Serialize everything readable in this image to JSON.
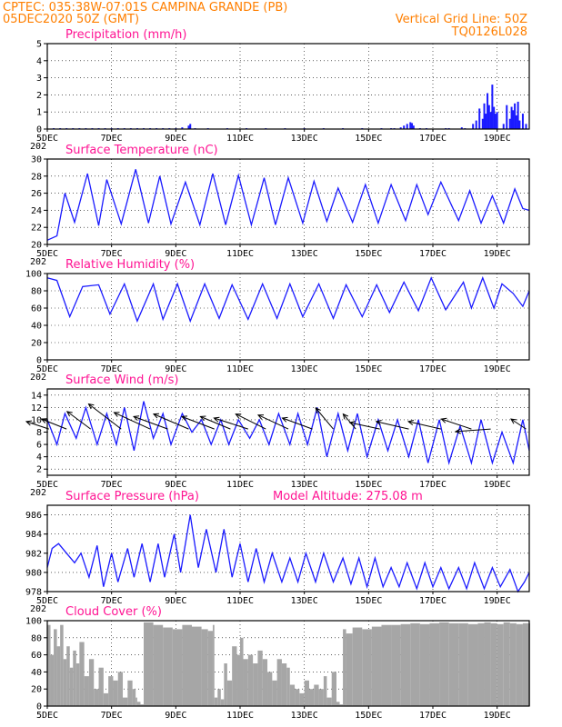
{
  "header": {
    "line1": "CPTEC:   035:38W-07:01S  CAMPINA GRANDE (PB)",
    "line2_left": "05DEC2020 50Z (GMT)",
    "line2_right": "Vertical Grid Line: 50Z",
    "line3_right": "TQ0126L028"
  },
  "colors": {
    "header": "#ff7f00",
    "title": "#ff1493",
    "series": "#1a1aff",
    "wind_arrow": "#000000",
    "cloud_fill": "#a6a6a6"
  },
  "x_axis": {
    "tick_labels": [
      "5DEC",
      "7DEC",
      "9DEC",
      "11DEC",
      "13DEC",
      "15DEC",
      "17DEC",
      "19DEC"
    ],
    "tick_days": [
      5,
      7,
      9,
      11,
      13,
      15,
      17,
      19
    ],
    "range_days": [
      5,
      20
    ],
    "cut_label": "202"
  },
  "chart_data": [
    {
      "id": "precip",
      "type": "bar",
      "title": "Precipitation (mm/h)",
      "ylim": [
        0,
        5
      ],
      "yticks": [
        0,
        1,
        2,
        3,
        4,
        5
      ],
      "grid": true,
      "series": [
        {
          "x": [
            5.2,
            5.4,
            5.6,
            5.8,
            6.0,
            6.2,
            6.4,
            6.6,
            6.8,
            7.0,
            7.2,
            7.4,
            7.6,
            7.8,
            8.0,
            8.2,
            8.4,
            8.6,
            8.8,
            9.0,
            9.2,
            9.4,
            9.45,
            9.6,
            10.0,
            10.6,
            11.2,
            11.8,
            12.4,
            13.0,
            13.6,
            14.2,
            14.8,
            15.4,
            15.7,
            15.8,
            16.0,
            16.1,
            16.2,
            16.3,
            16.35,
            16.4,
            16.6,
            16.8,
            17.4,
            17.5,
            17.9,
            18.0,
            18.25,
            18.35,
            18.45,
            18.55,
            18.6,
            18.65,
            18.7,
            18.75,
            18.8,
            18.85,
            18.9,
            18.95,
            19.0,
            19.2,
            19.3,
            19.4,
            19.45,
            19.5,
            19.55,
            19.6,
            19.65,
            19.7,
            19.8,
            19.9
          ],
          "values": [
            0.05,
            0.05,
            0.05,
            0.05,
            0.05,
            0.05,
            0.05,
            0.05,
            0.05,
            0.05,
            0.05,
            0.05,
            0.05,
            0.05,
            0.05,
            0.05,
            0.05,
            0.05,
            0.05,
            0.05,
            0.1,
            0.2,
            0.3,
            0.05,
            0.05,
            0.05,
            0.05,
            0.05,
            0.05,
            0.05,
            0.05,
            0.05,
            0.05,
            0.05,
            0.05,
            0.05,
            0.1,
            0.2,
            0.3,
            0.4,
            0.35,
            0.2,
            0.05,
            0.05,
            0.05,
            0.05,
            0.1,
            0.05,
            0.3,
            0.5,
            1.2,
            0.6,
            1.5,
            0.9,
            2.1,
            1.4,
            1.0,
            2.6,
            1.3,
            0.9,
            1.0,
            0.3,
            1.4,
            0.6,
            1.3,
            1.1,
            1.5,
            0.8,
            1.6,
            0.5,
            0.9,
            0.3
          ]
        }
      ]
    },
    {
      "id": "temp",
      "type": "line",
      "title": "Surface Temperature (nC)",
      "ylim": [
        20,
        30
      ],
      "yticks": [
        20,
        22,
        24,
        26,
        28,
        30
      ],
      "grid": true,
      "series": [
        {
          "x": [
            5.0,
            5.3,
            5.55,
            5.85,
            6.25,
            6.6,
            6.85,
            7.3,
            7.75,
            8.15,
            8.5,
            8.85,
            9.3,
            9.75,
            10.15,
            10.55,
            10.95,
            11.35,
            11.75,
            12.1,
            12.5,
            12.95,
            13.3,
            13.7,
            14.05,
            14.5,
            14.9,
            15.3,
            15.7,
            16.15,
            16.5,
            16.85,
            17.25,
            17.8,
            18.15,
            18.5,
            18.85,
            19.2,
            19.55,
            19.8,
            20.0
          ],
          "values": [
            20.5,
            21.0,
            26.0,
            22.6,
            28.3,
            22.2,
            27.6,
            22.4,
            28.8,
            22.5,
            28.0,
            22.4,
            27.3,
            22.3,
            28.3,
            22.3,
            28.1,
            22.3,
            27.8,
            22.3,
            27.8,
            22.5,
            27.4,
            22.7,
            26.6,
            22.6,
            27.0,
            22.5,
            27.0,
            22.8,
            27.0,
            23.5,
            27.3,
            22.8,
            26.3,
            22.5,
            25.7,
            22.5,
            26.5,
            24.2,
            24.0
          ]
        }
      ]
    },
    {
      "id": "rh",
      "type": "line",
      "title": "Relative Humidity (%)",
      "ylim": [
        0,
        100
      ],
      "yticks": [
        0,
        20,
        40,
        60,
        80,
        100
      ],
      "grid": true,
      "series": [
        {
          "x": [
            5.0,
            5.3,
            5.7,
            6.1,
            6.6,
            6.95,
            7.4,
            7.8,
            8.3,
            8.6,
            9.05,
            9.45,
            9.9,
            10.35,
            10.75,
            11.25,
            11.7,
            12.15,
            12.55,
            12.95,
            13.45,
            13.9,
            14.3,
            14.8,
            15.25,
            15.65,
            16.1,
            16.55,
            16.95,
            17.4,
            17.95,
            18.2,
            18.55,
            18.9,
            19.15,
            19.5,
            19.8,
            20.0
          ],
          "values": [
            95,
            92,
            50,
            85,
            87,
            53,
            88,
            45,
            88,
            47,
            88,
            45,
            88,
            48,
            87,
            47,
            88,
            48,
            88,
            50,
            88,
            48,
            87,
            50,
            87,
            55,
            90,
            57,
            95,
            58,
            90,
            60,
            95,
            60,
            88,
            77,
            62,
            80
          ]
        }
      ]
    },
    {
      "id": "wind",
      "type": "line",
      "title": "Surface Wind (m/s)",
      "ylim": [
        1,
        15
      ],
      "yticks": [
        2,
        4,
        6,
        8,
        10,
        12,
        14
      ],
      "grid": true,
      "series": [
        {
          "name": "speed",
          "x": [
            5.0,
            5.3,
            5.55,
            5.9,
            6.2,
            6.55,
            6.85,
            7.15,
            7.4,
            7.7,
            8.0,
            8.3,
            8.6,
            8.85,
            9.2,
            9.5,
            9.8,
            10.1,
            10.4,
            10.65,
            10.95,
            11.3,
            11.6,
            11.9,
            12.2,
            12.55,
            12.8,
            13.1,
            13.4,
            13.7,
            14.05,
            14.35,
            14.65,
            14.95,
            15.3,
            15.6,
            15.9,
            16.25,
            16.55,
            16.85,
            17.2,
            17.5,
            17.85,
            18.2,
            18.5,
            18.85,
            19.15,
            19.5,
            19.8,
            20.0
          ],
          "values": [
            10,
            6,
            11,
            7,
            12,
            6,
            11,
            6,
            12,
            5,
            13,
            7,
            11,
            6,
            11,
            8,
            10,
            6,
            10,
            6,
            10,
            7,
            10,
            6,
            11,
            6,
            11,
            6,
            12,
            4,
            11,
            5,
            11,
            4,
            10,
            5,
            10,
            4,
            10,
            3,
            10,
            3,
            9,
            3,
            10,
            3,
            8,
            3,
            10,
            5
          ]
        }
      ],
      "vectors": {
        "x": [
          5.05,
          5.6,
          6.35,
          7.3,
          8.2,
          8.75,
          9.4,
          10.2,
          10.7,
          11.25,
          11.8,
          12.5,
          13.25,
          13.9,
          14.6,
          15.35,
          16.25,
          17.25,
          18.2,
          18.8,
          19.9
        ],
        "u": [
          -4.5,
          -5.0,
          -4.7,
          -6.5,
          -7.2,
          -6.8,
          -7.0,
          -6.5,
          -6.0,
          -6.8,
          -6.0,
          -6.0,
          -6.0,
          -3.5,
          -2.5,
          -6.0,
          -6.5,
          -6.5,
          -6.0,
          -7.0,
          -3.0
        ],
        "v": [
          1.5,
          2.0,
          3.5,
          5.0,
          3.3,
          2.5,
          3.0,
          2.5,
          2.5,
          2.2,
          3.0,
          2.8,
          2.2,
          4.2,
          3.0,
          1.3,
          1.5,
          1.5,
          2.0,
          -0.5,
          2.0
        ]
      }
    },
    {
      "id": "pres",
      "type": "line",
      "title": "Surface Pressure (hPa)",
      "subtitle": "Model Altitude: 275.08 m",
      "ylim": [
        978,
        987
      ],
      "yticks": [
        978,
        980,
        982,
        984,
        986
      ],
      "grid": true,
      "series": [
        {
          "x": [
            5.0,
            5.15,
            5.35,
            5.6,
            5.85,
            6.05,
            6.3,
            6.55,
            6.75,
            7.0,
            7.2,
            7.5,
            7.7,
            7.95,
            8.2,
            8.45,
            8.65,
            8.95,
            9.15,
            9.45,
            9.7,
            9.95,
            10.25,
            10.5,
            10.75,
            11.0,
            11.25,
            11.5,
            11.75,
            12.0,
            12.3,
            12.55,
            12.8,
            13.05,
            13.35,
            13.6,
            13.9,
            14.2,
            14.45,
            14.7,
            14.95,
            15.2,
            15.45,
            15.7,
            15.95,
            16.2,
            16.5,
            16.75,
            17.0,
            17.25,
            17.5,
            17.8,
            18.05,
            18.3,
            18.6,
            18.85,
            19.1,
            19.4,
            19.65,
            19.85,
            20.0
          ],
          "values": [
            980.5,
            982.5,
            983.0,
            982.0,
            981.0,
            982.0,
            979.5,
            982.8,
            978.5,
            982.0,
            979.0,
            982.5,
            979.5,
            983.0,
            979.0,
            983.0,
            979.5,
            984.0,
            980.0,
            986.0,
            980.5,
            984.5,
            980.0,
            984.5,
            979.5,
            983.0,
            979.0,
            982.5,
            979.0,
            982.0,
            979.0,
            981.5,
            979.0,
            982.0,
            979.0,
            982.0,
            979.0,
            981.5,
            978.8,
            981.5,
            978.5,
            981.5,
            978.5,
            980.5,
            978.5,
            981.0,
            978.3,
            981.0,
            978.5,
            980.5,
            978.3,
            980.5,
            978.3,
            981.0,
            978.3,
            980.5,
            978.5,
            980.3,
            978.0,
            979.0,
            980.0
          ]
        }
      ]
    },
    {
      "id": "cloud",
      "type": "area",
      "title": "Cloud Cover (%)",
      "ylim": [
        0,
        100
      ],
      "yticks": [
        0,
        20,
        40,
        60,
        80,
        100
      ],
      "grid": true,
      "series": [
        {
          "x": [
            5.0,
            5.1,
            5.2,
            5.3,
            5.4,
            5.5,
            5.6,
            5.7,
            5.8,
            5.9,
            6.0,
            6.15,
            6.3,
            6.45,
            6.6,
            6.75,
            6.9,
            7.05,
            7.2,
            7.35,
            7.5,
            7.65,
            7.75,
            7.8,
            7.9,
            8.0,
            8.3,
            8.6,
            8.9,
            9.2,
            9.5,
            9.8,
            10.0,
            10.15,
            10.2,
            10.3,
            10.4,
            10.5,
            10.6,
            10.75,
            10.9,
            11.0,
            11.1,
            11.25,
            11.4,
            11.55,
            11.7,
            11.85,
            12.0,
            12.15,
            12.3,
            12.45,
            12.55,
            12.7,
            12.85,
            13.0,
            13.15,
            13.3,
            13.45,
            13.6,
            13.7,
            13.85,
            14.0,
            14.1,
            14.2,
            14.3,
            14.5,
            14.8,
            15.1,
            15.4,
            15.7,
            16.0,
            16.3,
            16.6,
            16.9,
            17.2,
            17.5,
            17.8,
            18.1,
            18.4,
            18.6,
            18.8,
            19.0,
            19.2,
            19.4,
            19.6,
            19.8,
            20.0
          ],
          "values": [
            95,
            60,
            90,
            70,
            95,
            55,
            70,
            45,
            65,
            50,
            75,
            35,
            55,
            20,
            45,
            15,
            35,
            30,
            40,
            10,
            30,
            20,
            10,
            5,
            2,
            98,
            95,
            92,
            90,
            95,
            93,
            90,
            88,
            95,
            10,
            20,
            8,
            50,
            30,
            70,
            60,
            80,
            55,
            60,
            50,
            65,
            55,
            40,
            30,
            55,
            50,
            45,
            25,
            20,
            15,
            30,
            20,
            25,
            20,
            35,
            10,
            40,
            5,
            2,
            90,
            85,
            92,
            90,
            93,
            95,
            95,
            96,
            97,
            96,
            97,
            98,
            97,
            97,
            96,
            97,
            98,
            97,
            96,
            98,
            97,
            96,
            97,
            97
          ]
        }
      ]
    }
  ]
}
